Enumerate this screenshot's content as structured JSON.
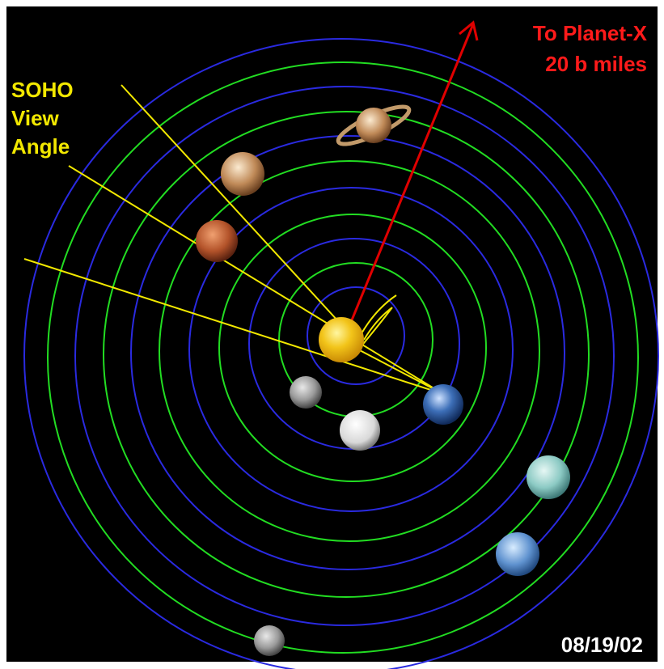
{
  "labels": {
    "soho": [
      "SOHO",
      "View",
      "Angle"
    ],
    "planet_x": [
      "To Planet-X",
      "20 b miles"
    ],
    "date": "08/19/02"
  }
}
